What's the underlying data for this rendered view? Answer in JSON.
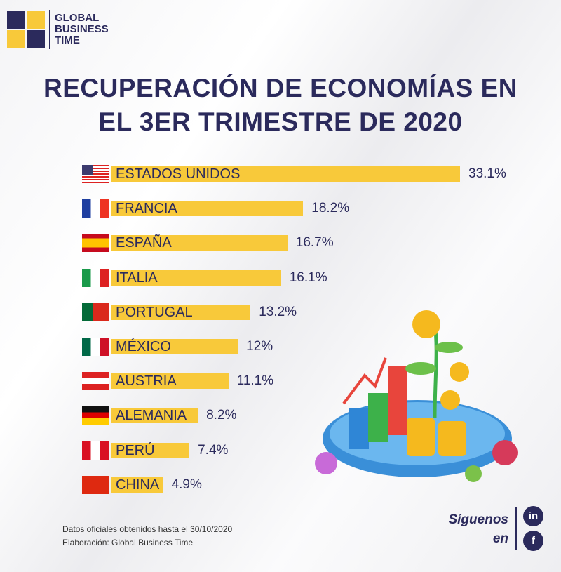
{
  "brand": {
    "name_lines": [
      "GLOBAL",
      "BUSINESS",
      "TIME"
    ],
    "navy": "#2b2a5c",
    "yellow": "#f8c93a"
  },
  "title_lines": [
    "RECUPERACIÓN DE ECONOMÍAS EN",
    "EL 3ER TRIMESTRE DE 2020"
  ],
  "chart_data": {
    "type": "bar",
    "orientation": "horizontal",
    "title": "RECUPERACIÓN DE ECONOMÍAS EN EL 3ER TRIMESTRE DE 2020",
    "categories": [
      "ESTADOS UNIDOS",
      "FRANCIA",
      "ESPAÑA",
      "ITALIA",
      "PORTUGAL",
      "MÉXICO",
      "AUSTRIA",
      "ALEMANIA",
      "PERÚ",
      "CHINA"
    ],
    "values": [
      33.1,
      18.2,
      16.7,
      16.1,
      13.2,
      12,
      11.1,
      8.2,
      7.4,
      4.9
    ],
    "labels": [
      "33.1%",
      "18.2%",
      "16.7%",
      "16.1%",
      "13.2%",
      "12%",
      "11.1%",
      "8.2%",
      "7.4%",
      "4.9%"
    ],
    "flags": [
      "us",
      "fr",
      "es",
      "it",
      "pt",
      "mx",
      "at",
      "de",
      "pe",
      "cn"
    ],
    "unit": "%",
    "xlim": [
      0,
      33.1
    ],
    "grid": false
  },
  "footer": {
    "line1": "Datos oficiales obtenidos hasta el 30/10/2020",
    "line2": "Elaboración: Global Business Time"
  },
  "social": {
    "follow_lines": [
      "Síguenos",
      "en"
    ],
    "linkedin": "in",
    "facebook": "f"
  }
}
